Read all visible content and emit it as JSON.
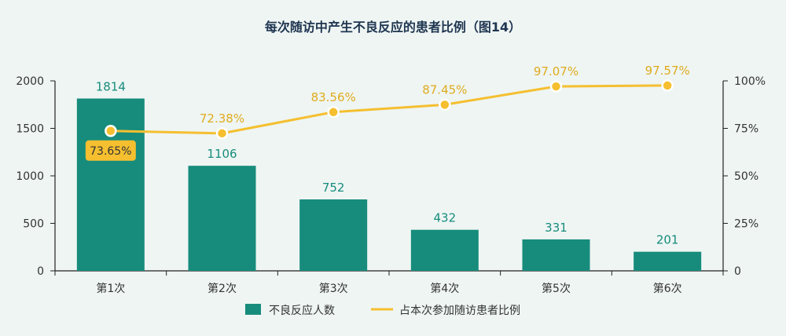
{
  "chart_data": {
    "type": "bar",
    "title": "每次随访中产生不良反应的患者比例（图14）",
    "categories": [
      "第1次",
      "第2次",
      "第3次",
      "第4次",
      "第5次",
      "第6次"
    ],
    "series": [
      {
        "name": "不良反应人数",
        "type": "bar",
        "axis": "left",
        "values": [
          1814,
          1106,
          752,
          432,
          331,
          201
        ],
        "labels": [
          "1814",
          "1106",
          "752",
          "432",
          "331",
          "201"
        ]
      },
      {
        "name": "占本次参加随访患者比例",
        "type": "line",
        "axis": "right",
        "values": [
          73.65,
          72.38,
          83.56,
          87.45,
          97.07,
          97.57
        ],
        "labels": [
          "73.65%",
          "72.38%",
          "83.56%",
          "87.45%",
          "97.07%",
          "97.57%"
        ]
      }
    ],
    "y_left": {
      "ylim": [
        0,
        2000
      ],
      "ticks": [
        "0",
        "500",
        "1000",
        "1500",
        "2000"
      ],
      "tick_values": [
        0,
        500,
        1000,
        1500,
        2000
      ]
    },
    "y_right": {
      "ylim": [
        0,
        100
      ],
      "ticks": [
        "0",
        "25%",
        "50%",
        "75%",
        "100%"
      ],
      "tick_values": [
        0,
        25,
        50,
        75,
        100
      ]
    },
    "legend_position": "bottom-center",
    "grid": false,
    "highlighted_point_index": 0,
    "colors": {
      "bar": "#178c7c",
      "bar_label": "#178c7c",
      "line": "#f5bf2f",
      "line_label": "#e0ab1f",
      "highlight_bg": "#f5bf2f",
      "title": "#1f3550",
      "axis_text": "#333333",
      "background": "#eef5f3"
    }
  }
}
